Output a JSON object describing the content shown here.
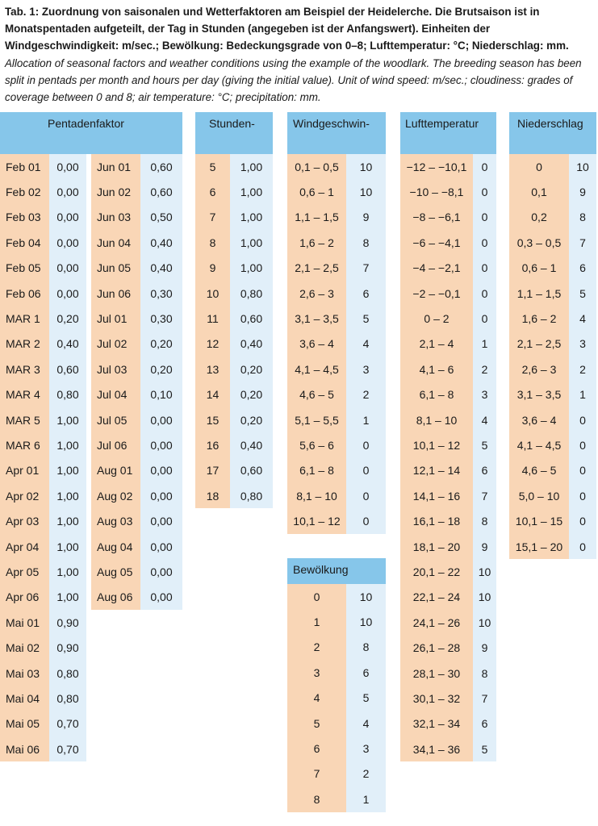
{
  "caption": {
    "de": "Tab. 1: Zuordnung von saisonalen und Wetterfaktoren am Beispiel der Heidelerche. Die Brutsaison ist in Monatspentaden aufgeteilt, der Tag in Stunden (angegeben ist der Anfangswert). Einheiten der Windgeschwindigkeit: m/sec.; Bewölkung: Bedeckungsgrade von 0–8; Lufttemperatur: °C; Niederschlag: mm.",
    "en": "Allocation of seasonal factors and weather conditions using the example of the woodlark. The breeding season has been split in pentads per month and hours per day (giving the initial value). Unit of wind speed: m/sec.; cloudiness: grades of coverage between 0 and 8; air temperature: °C; precipitation: mm."
  },
  "pentaden": {
    "header": "Pentadenfaktor",
    "left": [
      [
        "Feb 01",
        "0,00"
      ],
      [
        "Feb 02",
        "0,00"
      ],
      [
        "Feb 03",
        "0,00"
      ],
      [
        "Feb 04",
        "0,00"
      ],
      [
        "Feb 05",
        "0,00"
      ],
      [
        "Feb 06",
        "0,00"
      ],
      [
        "MAR 1",
        "0,20"
      ],
      [
        "MAR 2",
        "0,40"
      ],
      [
        "MAR 3",
        "0,60"
      ],
      [
        "MAR 4",
        "0,80"
      ],
      [
        "MAR 5",
        "1,00"
      ],
      [
        "MAR 6",
        "1,00"
      ],
      [
        "Apr 01",
        "1,00"
      ],
      [
        "Apr 02",
        "1,00"
      ],
      [
        "Apr 03",
        "1,00"
      ],
      [
        "Apr 04",
        "1,00"
      ],
      [
        "Apr 05",
        "1,00"
      ],
      [
        "Apr 06",
        "1,00"
      ],
      [
        "Mai 01",
        "0,90"
      ],
      [
        "Mai 02",
        "0,90"
      ],
      [
        "Mai 03",
        "0,80"
      ],
      [
        "Mai 04",
        "0,80"
      ],
      [
        "Mai 05",
        "0,70"
      ],
      [
        "Mai 06",
        "0,70"
      ]
    ],
    "right": [
      [
        "Jun 01",
        "0,60"
      ],
      [
        "Jun 02",
        "0,60"
      ],
      [
        "Jun 03",
        "0,50"
      ],
      [
        "Jun 04",
        "0,40"
      ],
      [
        "Jun 05",
        "0,40"
      ],
      [
        "Jun 06",
        "0,30"
      ],
      [
        "Jul 01",
        "0,30"
      ],
      [
        "Jul 02",
        "0,20"
      ],
      [
        "Jul 03",
        "0,20"
      ],
      [
        "Jul 04",
        "0,10"
      ],
      [
        "Jul 05",
        "0,00"
      ],
      [
        "Jul 06",
        "0,00"
      ],
      [
        "Aug 01",
        "0,00"
      ],
      [
        "Aug 02",
        "0,00"
      ],
      [
        "Aug 03",
        "0,00"
      ],
      [
        "Aug 04",
        "0,00"
      ],
      [
        "Aug 05",
        "0,00"
      ],
      [
        "Aug 06",
        "0,00"
      ]
    ]
  },
  "stunden": {
    "header": "Stunden-",
    "rows": [
      [
        "5",
        "1,00"
      ],
      [
        "6",
        "1,00"
      ],
      [
        "7",
        "1,00"
      ],
      [
        "8",
        "1,00"
      ],
      [
        "9",
        "1,00"
      ],
      [
        "10",
        "0,80"
      ],
      [
        "11",
        "0,60"
      ],
      [
        "12",
        "0,40"
      ],
      [
        "13",
        "0,20"
      ],
      [
        "14",
        "0,20"
      ],
      [
        "15",
        "0,20"
      ],
      [
        "16",
        "0,40"
      ],
      [
        "17",
        "0,60"
      ],
      [
        "18",
        "0,80"
      ]
    ]
  },
  "wind": {
    "header": "Windgeschwin-",
    "rows": [
      [
        "0,1 – 0,5",
        "10"
      ],
      [
        "0,6 – 1",
        "10"
      ],
      [
        "1,1 – 1,5",
        "9"
      ],
      [
        "1,6 – 2",
        "8"
      ],
      [
        "2,1 – 2,5",
        "7"
      ],
      [
        "2,6 – 3",
        "6"
      ],
      [
        "3,1 – 3,5",
        "5"
      ],
      [
        "3,6 – 4",
        "4"
      ],
      [
        "4,1 – 4,5",
        "3"
      ],
      [
        "4,6 – 5",
        "2"
      ],
      [
        "5,1 – 5,5",
        "1"
      ],
      [
        "5,6 – 6",
        "0"
      ],
      [
        "6,1 – 8",
        "0"
      ],
      [
        "8,1 – 10",
        "0"
      ],
      [
        "10,1 – 12",
        "0"
      ]
    ]
  },
  "bewoelkung": {
    "header": "Bewölkung",
    "rows": [
      [
        "0",
        "10"
      ],
      [
        "1",
        "10"
      ],
      [
        "2",
        "8"
      ],
      [
        "3",
        "6"
      ],
      [
        "4",
        "5"
      ],
      [
        "5",
        "4"
      ],
      [
        "6",
        "3"
      ],
      [
        "7",
        "2"
      ],
      [
        "8",
        "1"
      ]
    ]
  },
  "luft": {
    "header": "Lufttemperatur",
    "rows": [
      [
        "−12 – −10,1",
        "0"
      ],
      [
        "−10 – −8,1",
        "0"
      ],
      [
        "−8 – −6,1",
        "0"
      ],
      [
        "−6 – −4,1",
        "0"
      ],
      [
        "−4 – −2,1",
        "0"
      ],
      [
        "−2 – −0,1",
        "0"
      ],
      [
        "0 – 2",
        "0"
      ],
      [
        "2,1 – 4",
        "1"
      ],
      [
        "4,1 – 6",
        "2"
      ],
      [
        "6,1 – 8",
        "3"
      ],
      [
        "8,1 – 10",
        "4"
      ],
      [
        "10,1 – 12",
        "5"
      ],
      [
        "12,1 – 14",
        "6"
      ],
      [
        "14,1 – 16",
        "7"
      ],
      [
        "16,1 – 18",
        "8"
      ],
      [
        "18,1 – 20",
        "9"
      ],
      [
        "20,1 – 22",
        "10"
      ],
      [
        "22,1 – 24",
        "10"
      ],
      [
        "24,1 – 26",
        "10"
      ],
      [
        "26,1 – 28",
        "9"
      ],
      [
        "28,1 – 30",
        "8"
      ],
      [
        "30,1 – 32",
        "7"
      ],
      [
        "32,1 – 34",
        "6"
      ],
      [
        "34,1 – 36",
        "5"
      ]
    ]
  },
  "nieder": {
    "header": "Niederschlag",
    "rows": [
      [
        "0",
        "10"
      ],
      [
        "0,1",
        "9"
      ],
      [
        "0,2",
        "8"
      ],
      [
        "0,3 – 0,5",
        "7"
      ],
      [
        "0,6 – 1",
        "6"
      ],
      [
        "1,1 – 1,5",
        "5"
      ],
      [
        "1,6 – 2",
        "4"
      ],
      [
        "2,1 – 2,5",
        "3"
      ],
      [
        "2,6 – 3",
        "2"
      ],
      [
        "3,1 – 3,5",
        "1"
      ],
      [
        "3,6 – 4",
        "0"
      ],
      [
        "4,1 – 4,5",
        "0"
      ],
      [
        "4,6 – 5",
        "0"
      ],
      [
        "5,0 – 10",
        "0"
      ],
      [
        "10,1 – 15",
        "0"
      ],
      [
        "15,1 – 20",
        "0"
      ]
    ]
  }
}
